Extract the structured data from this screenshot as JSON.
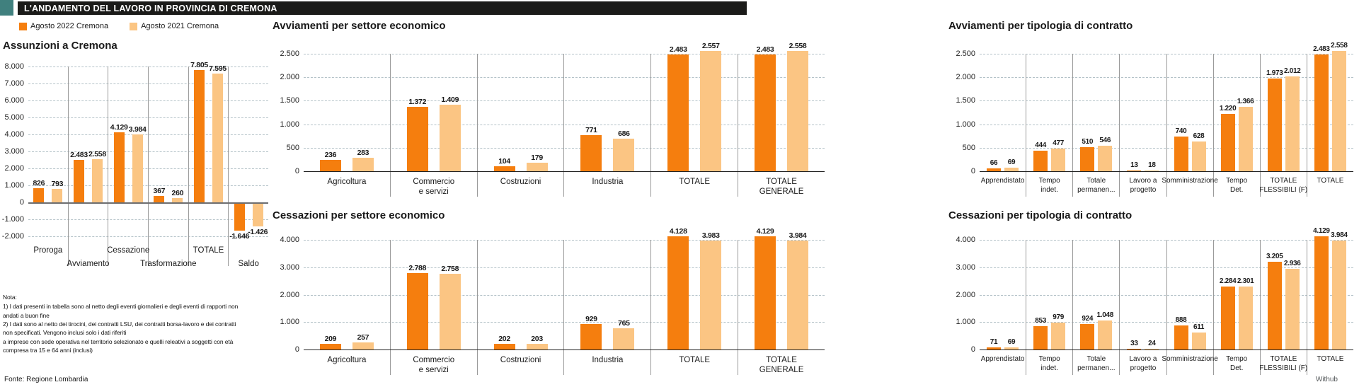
{
  "header": {
    "title": "L'ANDAMENTO DEL LAVORO IN PROVINCIA DI CREMONA"
  },
  "legend": {
    "series1": "Agosto 2022 Cremona",
    "series2": "Agosto 2021 Cremona"
  },
  "colors": {
    "series1": "#F57E0E",
    "series2": "#FBC583",
    "teal": "#40807E",
    "header_bg": "#1B1B19",
    "gridline": "#B4C2C8",
    "separator": "#9A9A9A"
  },
  "notes": {
    "title": "Nota:",
    "lines": [
      "1) I dati presenti in tabella sono al netto degli eventi giornalieri e degli eventi di rapporti non",
      "andati a buon fine",
      "2) I dati sono al netto dei tirocini, dei contratti LSU, dei contratti borsa-lavoro e dei contratti",
      "non specificati. Vengono inclusi solo i dati riferiti",
      "a imprese con sede operativa nel territorio selezionato e quelli releativi a soggetti con età",
      "compresa tra 15 e 64 anni (inclusi)"
    ]
  },
  "source": "Fonte: Regione Lombardia",
  "watermark": "Withub",
  "chart_data": [
    {
      "id": "assunzioni",
      "type": "bar",
      "title": "Assunzioni a Cremona",
      "ymin": -2000,
      "ymax": 8000,
      "ystep": 1000,
      "grid": "dashed",
      "legend_position": "top-left",
      "categories": [
        {
          "lines": [
            "Proroga"
          ],
          "row": 1
        },
        {
          "lines": [
            "Avviamento"
          ],
          "row": 2
        },
        {
          "lines": [
            "Cessazione"
          ],
          "row": 1
        },
        {
          "lines": [
            "Trasformazione"
          ],
          "row": 2
        },
        {
          "lines": [
            "TOTALE"
          ],
          "row": 1
        },
        {
          "lines": [
            "Saldo"
          ],
          "row": 2
        }
      ],
      "series": [
        {
          "name": "Agosto 2022 Cremona",
          "values": [
            826,
            2483,
            4129,
            367,
            7805,
            -1646
          ]
        },
        {
          "name": "Agosto 2021 Cremona",
          "values": [
            793,
            2558,
            3984,
            260,
            7595,
            -1426
          ]
        }
      ]
    },
    {
      "id": "avviamenti-settore",
      "type": "bar",
      "title": "Avviamenti per settore economico",
      "ymin": 0,
      "ymax": 2500,
      "ystep": 500,
      "grid": "dashed",
      "categories": [
        {
          "lines": [
            "Agricoltura"
          ]
        },
        {
          "lines": [
            "Commercio",
            "e servizi"
          ]
        },
        {
          "lines": [
            "Costruzioni"
          ]
        },
        {
          "lines": [
            "Industria"
          ]
        },
        {
          "lines": [
            "TOTALE"
          ]
        },
        {
          "lines": [
            "TOTALE",
            "GENERALE"
          ]
        }
      ],
      "series": [
        {
          "name": "Agosto 2022 Cremona",
          "values": [
            236,
            1372,
            104,
            771,
            2483,
            2483
          ]
        },
        {
          "name": "Agosto 2021 Cremona",
          "values": [
            283,
            1409,
            179,
            686,
            2557,
            2558
          ]
        }
      ]
    },
    {
      "id": "cessazioni-settore",
      "type": "bar",
      "title": "Cessazioni per settore economico",
      "ymin": 0,
      "ymax": 4000,
      "ystep": 1000,
      "grid": "dashed",
      "categories": [
        {
          "lines": [
            "Agricoltura"
          ]
        },
        {
          "lines": [
            "Commercio",
            "e servizi"
          ]
        },
        {
          "lines": [
            "Costruzioni"
          ]
        },
        {
          "lines": [
            "Industria"
          ]
        },
        {
          "lines": [
            "TOTALE"
          ]
        },
        {
          "lines": [
            "TOTALE",
            "GENERALE"
          ]
        }
      ],
      "series": [
        {
          "name": "Agosto 2022 Cremona",
          "values": [
            209,
            2788,
            202,
            929,
            4128,
            4129
          ]
        },
        {
          "name": "Agosto 2021 Cremona",
          "values": [
            257,
            2758,
            203,
            765,
            3983,
            3984
          ]
        }
      ]
    },
    {
      "id": "avviamenti-contratto",
      "type": "bar",
      "title": "Avviamenti per tipologia di contratto",
      "ymin": 0,
      "ymax": 2500,
      "ystep": 500,
      "grid": "dashed",
      "categories": [
        {
          "lines": [
            "Apprendistato"
          ]
        },
        {
          "lines": [
            "Tempo",
            "indet."
          ]
        },
        {
          "lines": [
            "Totale",
            "permanen..."
          ]
        },
        {
          "lines": [
            "Lavoro a",
            "progetto"
          ]
        },
        {
          "lines": [
            "Somministrazione"
          ]
        },
        {
          "lines": [
            "Tempo",
            "Det."
          ]
        },
        {
          "lines": [
            "TOTALE",
            "FLESSIBILI (F)"
          ]
        },
        {
          "lines": [
            "TOTALE"
          ]
        }
      ],
      "series": [
        {
          "name": "Agosto 2022 Cremona",
          "values": [
            66,
            444,
            510,
            13,
            740,
            1220,
            1973,
            2483
          ]
        },
        {
          "name": "Agosto 2021 Cremona",
          "values": [
            69,
            477,
            546,
            18,
            628,
            1366,
            2012,
            2558
          ]
        }
      ]
    },
    {
      "id": "cessazioni-contratto",
      "type": "bar",
      "title": "Cessazioni per tipologia di contratto",
      "ymin": 0,
      "ymax": 4000,
      "ystep": 1000,
      "grid": "dashed",
      "categories": [
        {
          "lines": [
            "Apprendistato"
          ]
        },
        {
          "lines": [
            "Tempo",
            "indet."
          ]
        },
        {
          "lines": [
            "Totale",
            "permanen..."
          ]
        },
        {
          "lines": [
            "Lavoro a",
            "progetto"
          ]
        },
        {
          "lines": [
            "Somministrazione"
          ]
        },
        {
          "lines": [
            "Tempo",
            "Det."
          ]
        },
        {
          "lines": [
            "TOTALE",
            "FLESSIBILI (F)"
          ]
        },
        {
          "lines": [
            "TOTALE"
          ]
        }
      ],
      "series": [
        {
          "name": "Agosto 2022 Cremona",
          "values": [
            71,
            853,
            924,
            33,
            888,
            2284,
            3205,
            4129
          ]
        },
        {
          "name": "Agosto 2021 Cremona",
          "values": [
            69,
            979,
            1048,
            24,
            611,
            2301,
            2936,
            3984
          ]
        }
      ]
    }
  ]
}
